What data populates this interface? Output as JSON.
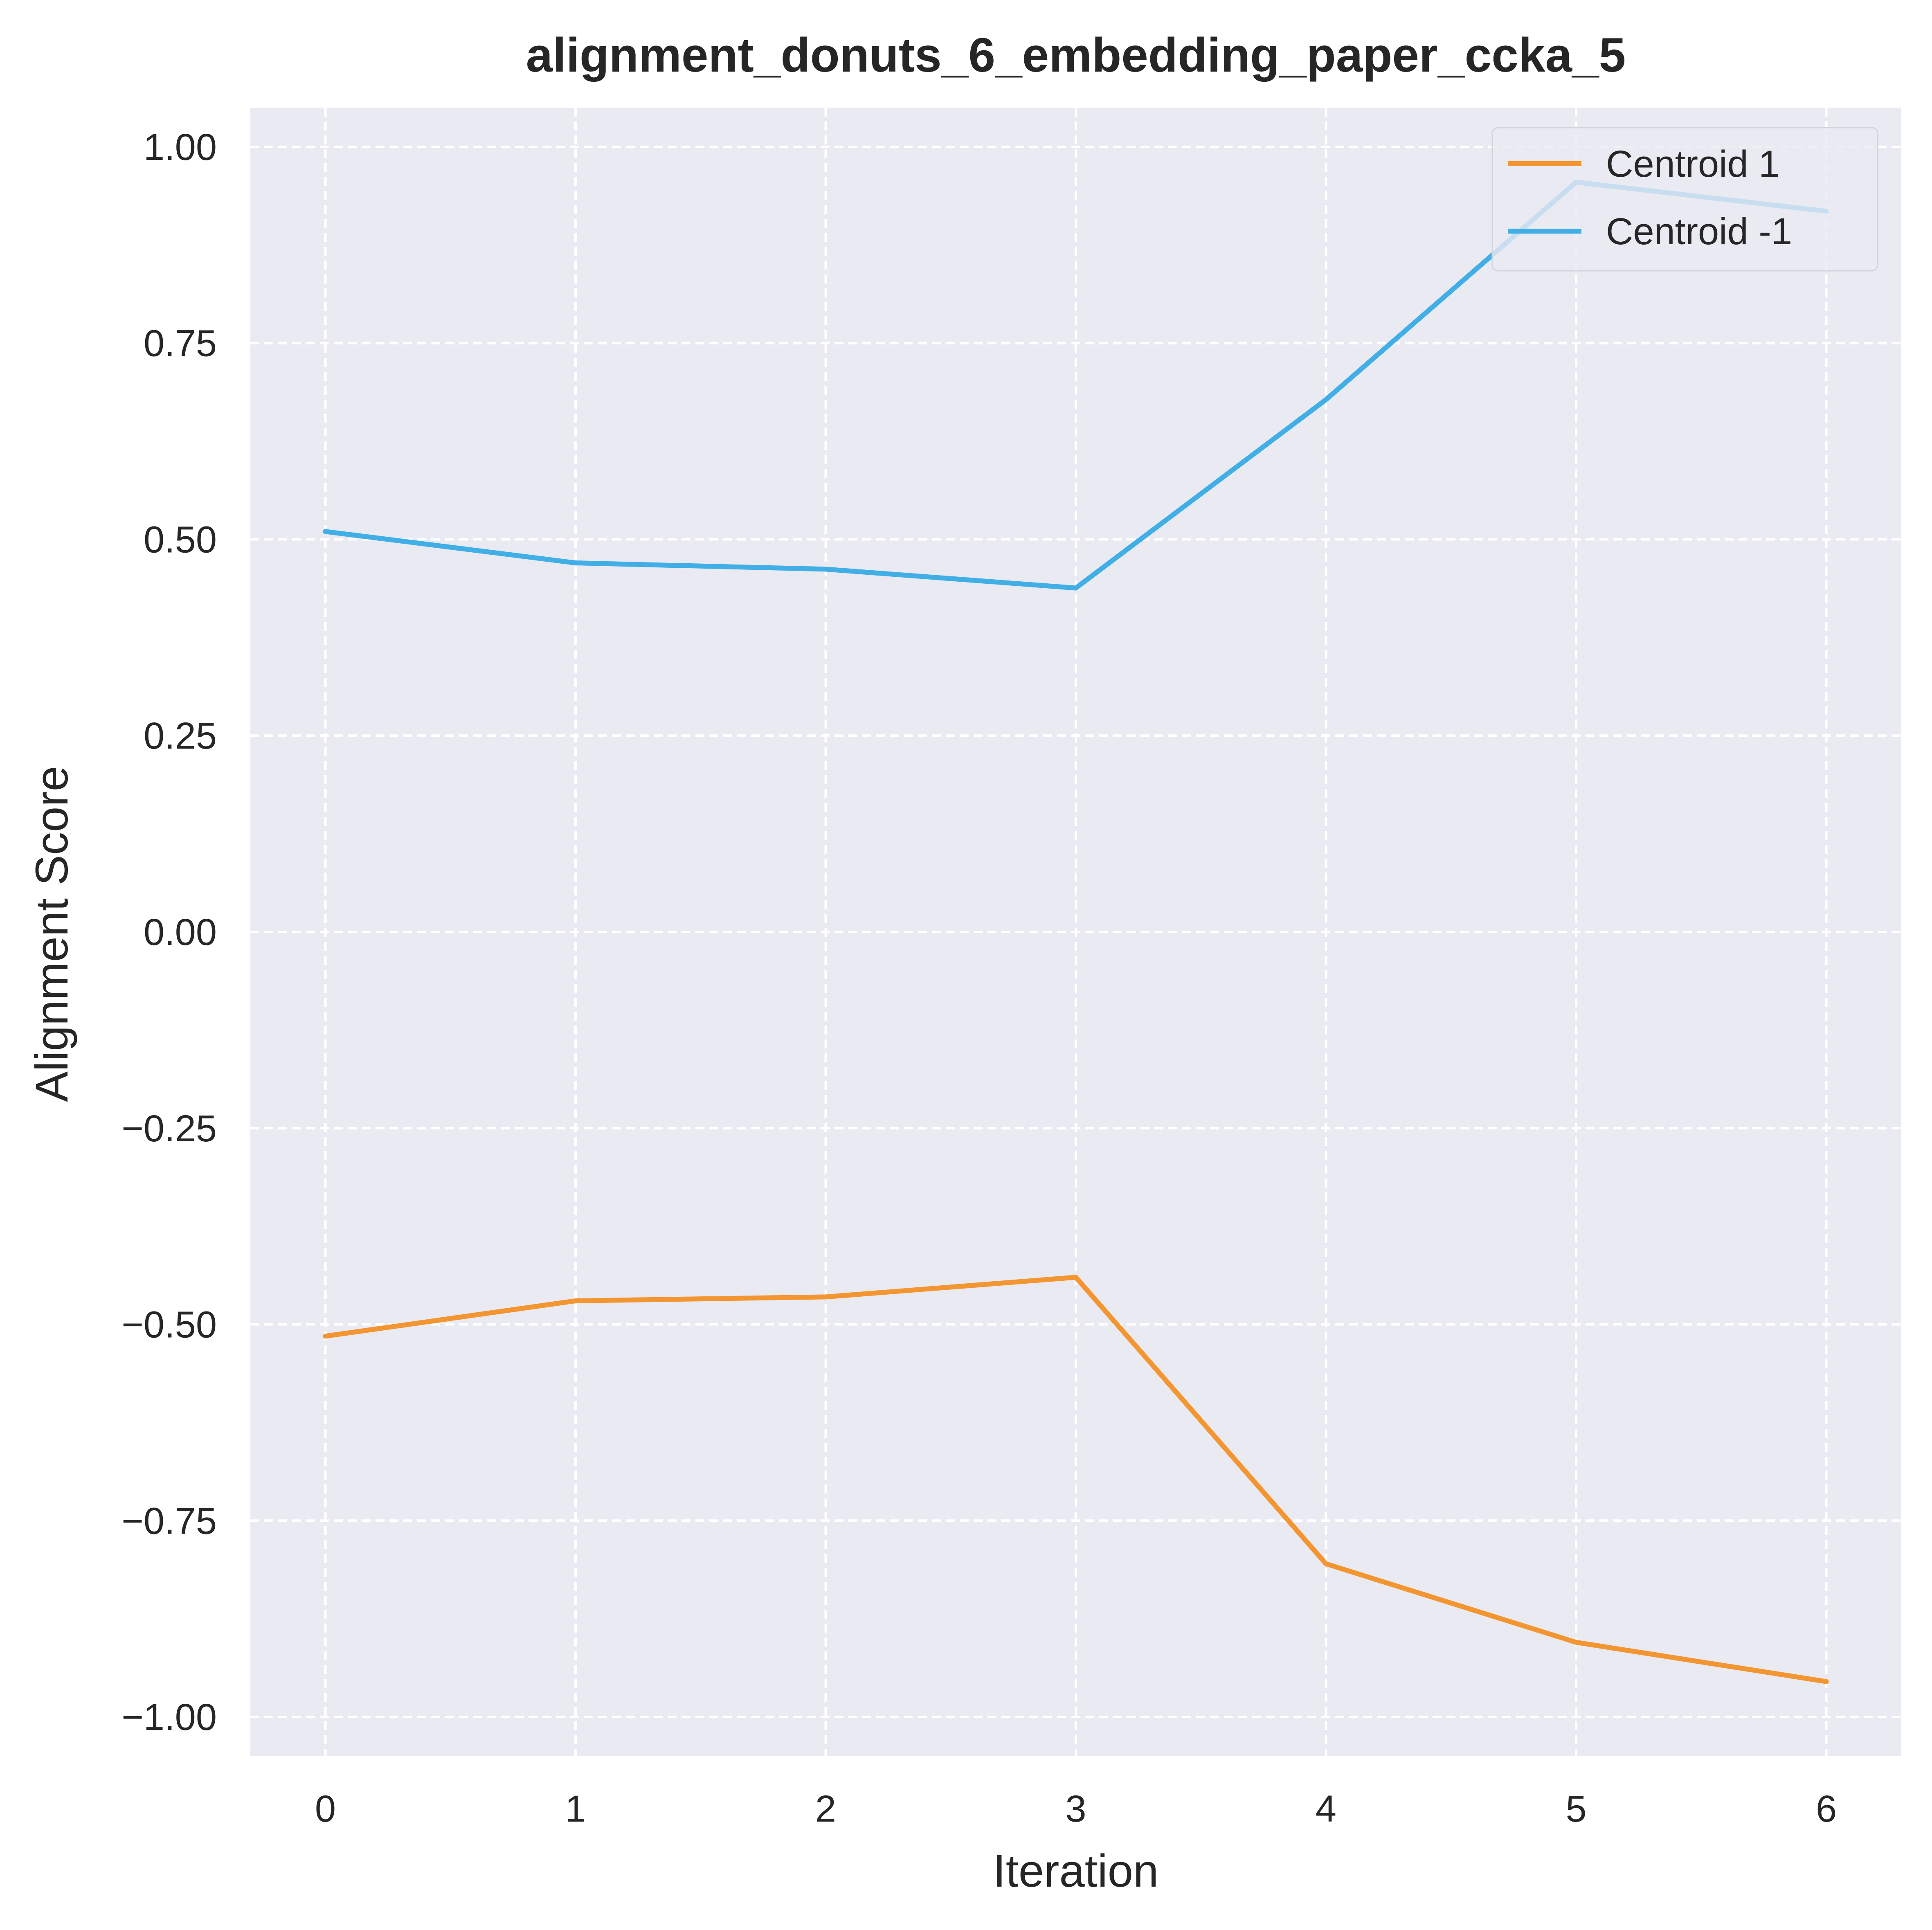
{
  "chart_data": {
    "type": "line",
    "title": "alignment_donuts_6_embedding_paper_ccka_5",
    "xlabel": "Iteration",
    "ylabel": "Alignment Score",
    "x": [
      0,
      1,
      2,
      3,
      4,
      5,
      6
    ],
    "xlim": [
      -0.3,
      6.3
    ],
    "ylim": [
      -1.05,
      1.05
    ],
    "xticks": [
      0,
      1,
      2,
      3,
      4,
      5,
      6
    ],
    "xtick_labels": [
      "0",
      "1",
      "2",
      "3",
      "4",
      "5",
      "6"
    ],
    "yticks": [
      1.0,
      0.75,
      0.5,
      0.25,
      0.0,
      -0.25,
      -0.5,
      -0.75,
      -1.0
    ],
    "ytick_labels": [
      "1.00",
      "0.75",
      "0.50",
      "0.25",
      "0.00",
      "−0.25",
      "−0.50",
      "−0.75",
      "−1.00"
    ],
    "grid": true,
    "grid_style": "dashed",
    "background_color": "#eaeaf2",
    "legend_position": "top-right",
    "series": [
      {
        "name": "Centroid 1",
        "color": "#f39530",
        "values": [
          -0.515,
          -0.47,
          -0.465,
          -0.44,
          -0.805,
          -0.905,
          -0.955
        ]
      },
      {
        "name": "Centroid -1",
        "color": "#41aee6",
        "values": [
          0.51,
          0.47,
          0.462,
          0.438,
          0.678,
          0.955,
          0.918
        ]
      }
    ]
  }
}
